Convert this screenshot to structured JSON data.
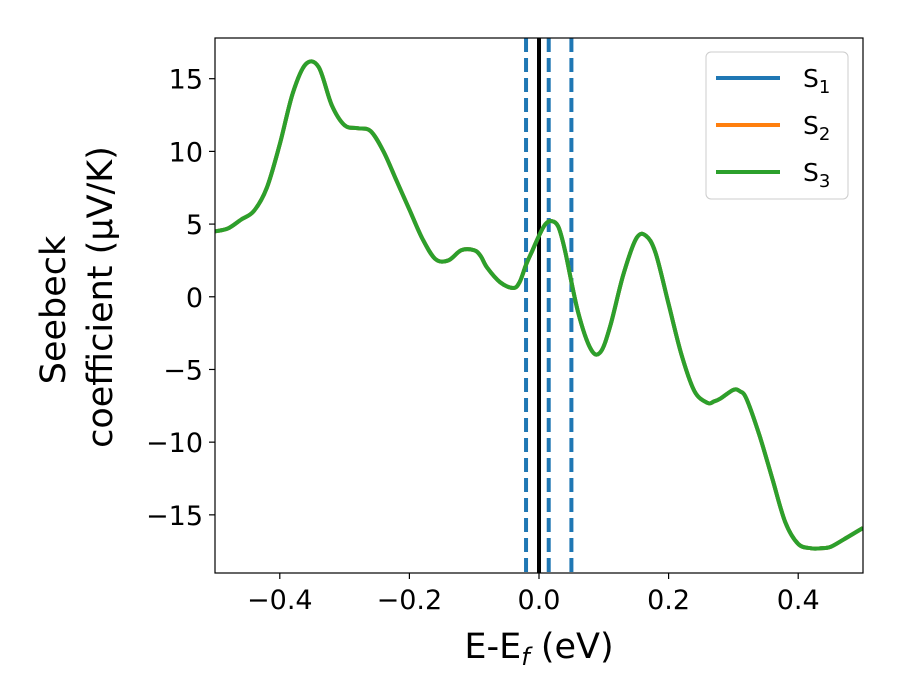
{
  "chart_data": {
    "type": "line",
    "title": "",
    "xlabel": "E-E",
    "xlabel_sub": "f",
    "xlabel_unit": " (eV)",
    "ylabel_line1": "Seebeck",
    "ylabel_line2": "coefficient  (μV/K)",
    "xlim": [
      -0.5,
      0.5
    ],
    "ylim": [
      -19,
      17.8
    ],
    "xticks": [
      -0.4,
      -0.2,
      0.0,
      0.2,
      0.4
    ],
    "xtick_labels": [
      "−0.4",
      "−0.2",
      "0.0",
      "0.2",
      "0.4"
    ],
    "yticks": [
      -15,
      -10,
      -5,
      0,
      5,
      10,
      15
    ],
    "ytick_labels": [
      "−15",
      "−10",
      "−5",
      "0",
      "5",
      "10",
      "15"
    ],
    "grid": false,
    "legend_position": "top-right",
    "vlines": [
      {
        "x": 0.0,
        "color": "#000000",
        "style": "solid"
      },
      {
        "x": -0.02,
        "color": "#1f77b4",
        "style": "dashed"
      },
      {
        "x": 0.015,
        "color": "#1f77b4",
        "style": "dashed"
      },
      {
        "x": 0.05,
        "color": "#1f77b4",
        "style": "dashed"
      }
    ],
    "series": [
      {
        "name": "S",
        "sub": "1",
        "color": "#1f77b4"
      },
      {
        "name": "S",
        "sub": "2",
        "color": "#ff7f0e"
      },
      {
        "name": "S",
        "sub": "3",
        "color": "#2ca02c"
      }
    ],
    "curve": {
      "x": [
        -0.5,
        -0.48,
        -0.46,
        -0.44,
        -0.42,
        -0.4,
        -0.38,
        -0.36,
        -0.34,
        -0.32,
        -0.3,
        -0.28,
        -0.26,
        -0.24,
        -0.22,
        -0.2,
        -0.18,
        -0.16,
        -0.14,
        -0.12,
        -0.1,
        -0.09,
        -0.08,
        -0.06,
        -0.04,
        -0.03,
        -0.02,
        -0.01,
        0.0,
        0.01,
        0.02,
        0.03,
        0.04,
        0.06,
        0.08,
        0.095,
        0.11,
        0.13,
        0.15,
        0.165,
        0.18,
        0.2,
        0.22,
        0.24,
        0.26,
        0.27,
        0.28,
        0.3,
        0.31,
        0.32,
        0.34,
        0.36,
        0.38,
        0.4,
        0.42,
        0.435,
        0.45,
        0.47,
        0.5
      ],
      "y": [
        4.5,
        4.7,
        5.3,
        5.9,
        7.5,
        10.5,
        14.0,
        16.0,
        15.8,
        13.2,
        11.8,
        11.6,
        11.4,
        10.0,
        8.0,
        6.0,
        4.0,
        2.6,
        2.5,
        3.2,
        3.2,
        2.8,
        2.0,
        1.0,
        0.6,
        1.0,
        2.2,
        3.2,
        4.2,
        5.0,
        5.2,
        4.8,
        3.2,
        -1.0,
        -3.6,
        -3.8,
        -2.0,
        1.5,
        4.0,
        4.2,
        3.0,
        -0.5,
        -4.0,
        -6.5,
        -7.3,
        -7.2,
        -7.0,
        -6.4,
        -6.5,
        -7.0,
        -9.5,
        -12.5,
        -15.5,
        -17.0,
        -17.3,
        -17.3,
        -17.2,
        -16.7,
        -15.9
      ]
    }
  }
}
